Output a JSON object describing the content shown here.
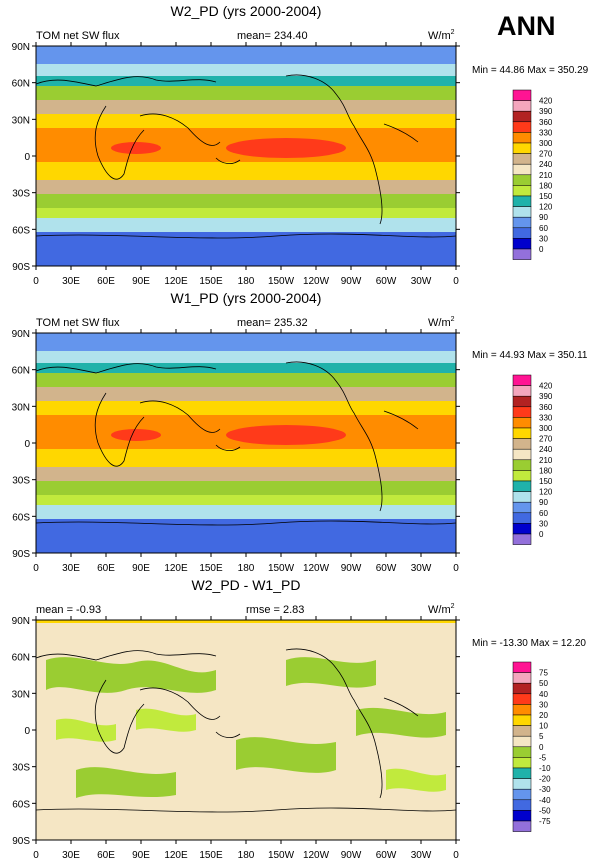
{
  "season_label": "ANN",
  "lon_labels": [
    "0",
    "30E",
    "60E",
    "90E",
    "120E",
    "150E",
    "180",
    "150W",
    "120W",
    "90W",
    "60W",
    "30W",
    "0"
  ],
  "lat_labels": [
    "90N",
    "60N",
    "30N",
    "0",
    "30S",
    "60S",
    "90S"
  ],
  "panels": [
    {
      "title": "W2_PD (yrs 2000-2004)",
      "left_label": "TOM net SW flux",
      "mean_label": "mean= 234.40",
      "rmse_label": "",
      "units": "W/m",
      "units_exp": "2",
      "minmax": "Min =  44.86 Max = 350.29",
      "kind": "abs",
      "levels": [
        "420",
        "390",
        "360",
        "330",
        "300",
        "270",
        "240",
        "210",
        "180",
        "150",
        "120",
        "90",
        "60",
        "30",
        "0"
      ]
    },
    {
      "title": "W1_PD (yrs 2000-2004)",
      "left_label": "TOM net SW flux",
      "mean_label": "mean= 235.32",
      "rmse_label": "",
      "units": "W/m",
      "units_exp": "2",
      "minmax": "Min =  44.93 Max = 350.11",
      "kind": "abs",
      "levels": [
        "420",
        "390",
        "360",
        "330",
        "300",
        "270",
        "240",
        "210",
        "180",
        "150",
        "120",
        "90",
        "60",
        "30",
        "0"
      ]
    },
    {
      "title": "W2_PD - W1_PD",
      "left_label": "mean =  -0.93",
      "mean_label": "",
      "rmse_label": "rmse =   2.83",
      "units": "W/m",
      "units_exp": "2",
      "minmax": "Min = -13.30 Max =  12.20",
      "kind": "diff",
      "levels": [
        "75",
        "50",
        "40",
        "30",
        "20",
        "10",
        "5",
        "0",
        "-5",
        "-10",
        "-20",
        "-30",
        "-40",
        "-50",
        "-75"
      ]
    }
  ],
  "colors": {
    "abs": [
      "#ff1493",
      "#f4a6bd",
      "#b22222",
      "#ff3a1a",
      "#ff8c00",
      "#ffd700",
      "#d2b48c",
      "#f5e6c4",
      "#9acd32",
      "#c1ea3d",
      "#20b2aa",
      "#b0e2ec",
      "#6495ed",
      "#4169e1",
      "#0000cd",
      "#9370db"
    ],
    "diff": [
      "#ff1493",
      "#f4a6bd",
      "#b22222",
      "#ff3a1a",
      "#ff8c00",
      "#ffd700",
      "#d2b48c",
      "#f5e6c4",
      "#9acd32",
      "#c1ea3d",
      "#20b2aa",
      "#b0e2ec",
      "#6495ed",
      "#4169e1",
      "#0000cd",
      "#9370db"
    ]
  }
}
